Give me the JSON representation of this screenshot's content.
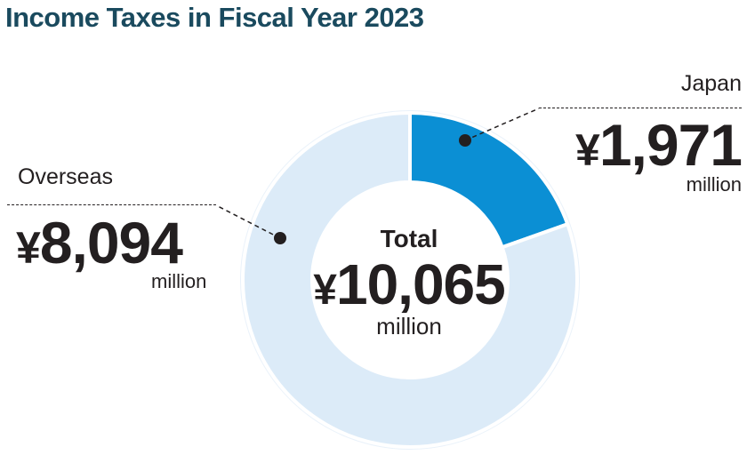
{
  "chart_data": {
    "type": "pie",
    "title": "Income Taxes in Fiscal Year 2023",
    "currency": "¥",
    "unit": "million",
    "slices": [
      {
        "label": "Japan",
        "value": 1971,
        "display": "1,971",
        "color": "#0b8fd4"
      },
      {
        "label": "Overseas",
        "value": 8094,
        "display": "8,094",
        "color": "#dcebf8"
      }
    ],
    "total": {
      "label": "Total",
      "value": 10065,
      "display": "10,065"
    }
  }
}
